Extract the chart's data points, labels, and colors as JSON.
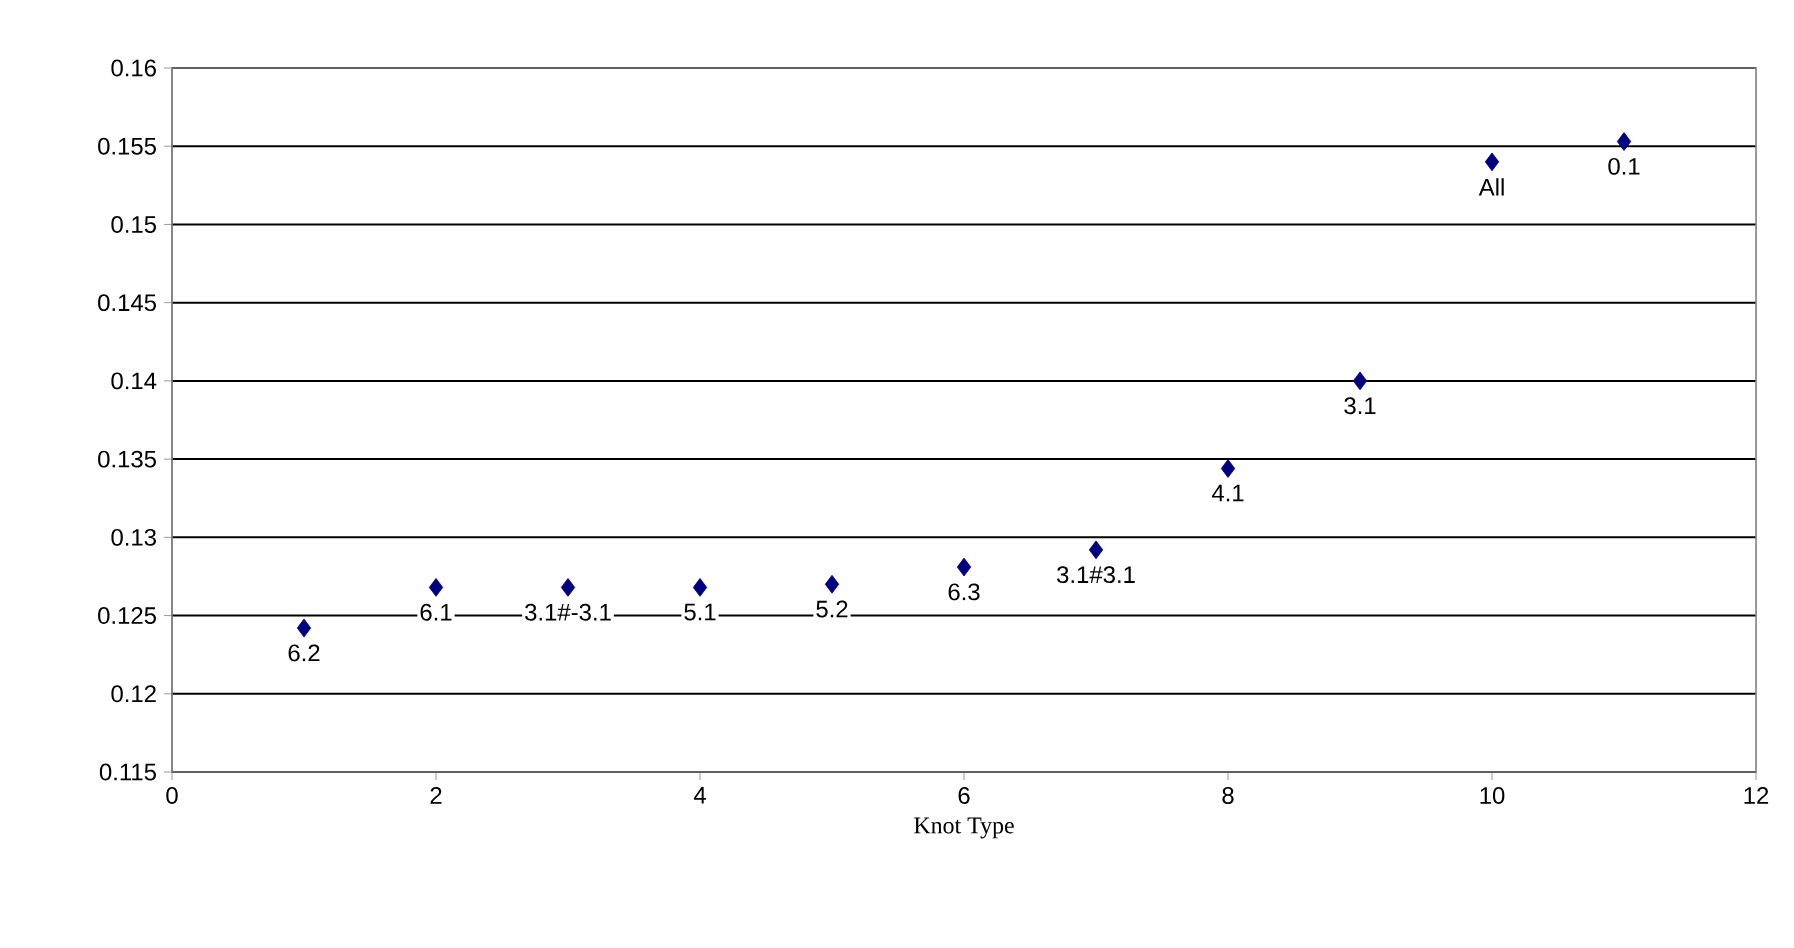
{
  "chart_data": {
    "type": "scatter",
    "xlabel": "Knot Type",
    "x": [
      1,
      2,
      3,
      4,
      5,
      6,
      7,
      8,
      9,
      10,
      11
    ],
    "values": [
      0.1242,
      0.1268,
      0.1268,
      0.1268,
      0.127,
      0.1281,
      0.1292,
      0.1344,
      0.14,
      0.154,
      0.1553
    ],
    "color": "#000080",
    "marker": "diamond",
    "grid": "y",
    "xlim": [
      0,
      12
    ],
    "xticks": [
      0,
      2,
      4,
      6,
      8,
      10,
      12
    ],
    "ylim": [
      0.115,
      0.16
    ],
    "yticks": [
      0.115,
      0.12,
      0.125,
      0.13,
      0.135,
      0.14,
      0.145,
      0.15,
      0.155,
      0.16
    ],
    "annotations": [
      {
        "text": "6.2",
        "x": 1,
        "y": 0.1242
      },
      {
        "text": "6.1",
        "x": 2,
        "y": 0.1268
      },
      {
        "text": "3.1#-3.1",
        "x": 3,
        "y": 0.1268
      },
      {
        "text": "5.1",
        "x": 4,
        "y": 0.1268
      },
      {
        "text": "5.2",
        "x": 5,
        "y": 0.127
      },
      {
        "text": "6.3",
        "x": 6,
        "y": 0.1281
      },
      {
        "text": "3.1#3.1",
        "x": 7,
        "y": 0.1292
      },
      {
        "text": "4.1",
        "x": 8,
        "y": 0.1344
      },
      {
        "text": "3.1",
        "x": 9,
        "y": 0.14
      },
      {
        "text": "All",
        "x": 10,
        "y": 0.154
      },
      {
        "text": "0.1",
        "x": 11,
        "y": 0.1553
      }
    ]
  }
}
